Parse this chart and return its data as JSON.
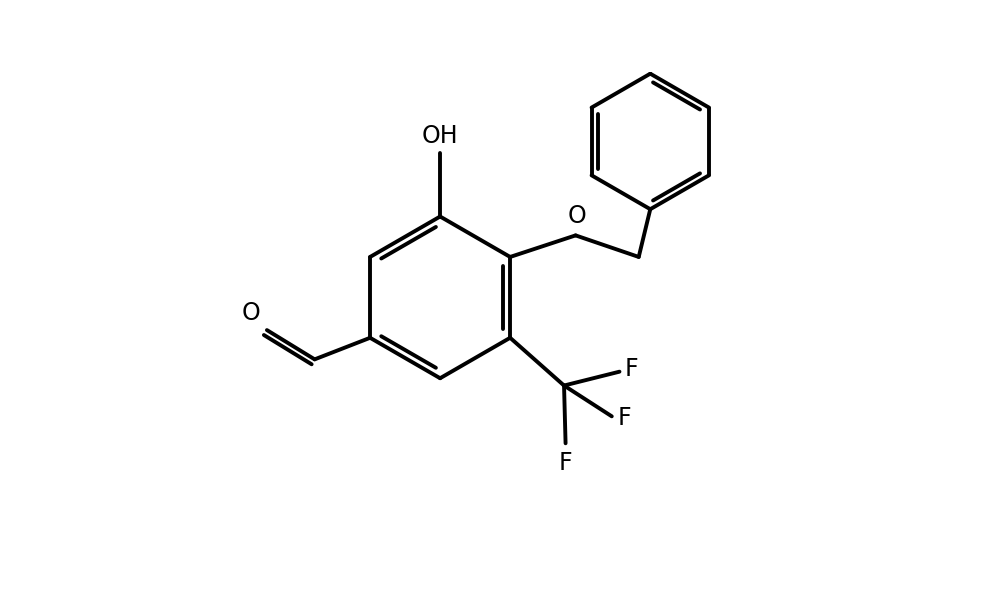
{
  "background_color": "#ffffff",
  "line_color": "#000000",
  "line_width": 2.8,
  "font_size": 17,
  "figsize": [
    10.06,
    5.98
  ],
  "dpi": 100,
  "xlim": [
    0,
    10.06
  ],
  "ylim": [
    0,
    5.98
  ]
}
